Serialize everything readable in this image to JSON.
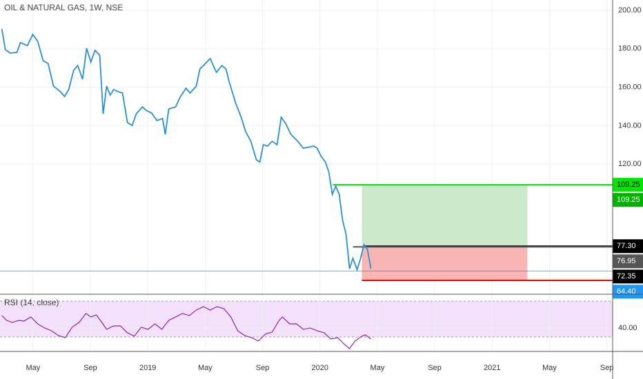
{
  "chart_data": [
    {
      "type": "line",
      "title": "OIL & NATURAL GAS, 1W, NSE",
      "color": "#2a8fd6",
      "x": [
        1.83,
        2.07,
        2.4,
        2.88,
        3.13,
        3.61,
        3.99,
        4.33,
        4.71,
        5.05,
        5.43,
        5.91,
        6.2,
        6.49,
        6.83,
        7.12,
        7.45,
        7.74,
        8.03,
        8.32,
        8.65,
        8.89,
        9.13,
        9.38,
        9.62,
        9.95,
        10.24,
        10.58,
        10.91,
        11.2,
        11.63,
        11.88,
        12.26,
        12.64,
        13.03,
        13.22,
        13.46,
        13.94,
        14.28,
        14.66,
        14.95,
        15.38,
        15.63,
        15.87,
        16.35,
        16.78,
        17.16,
        17.45,
        17.69,
        18.13,
        18.51,
        18.8,
        19.18,
        19.57,
        19.81,
        20.05,
        20.34,
        20.67,
        21.01,
        21.3,
        21.63,
        21.97,
        22.45,
        22.84,
        23.32,
        23.56,
        23.8,
        24.09,
        24.38,
        24.62,
        24.86,
        25.1,
        25.34,
        25.58,
        25.82,
        26.06,
        26.3,
        26.59,
        26.83,
        27.07,
        27.31,
        27.55
      ],
      "values": [
        190.3,
        179.6,
        177.8,
        178.2,
        183.2,
        181.7,
        187.5,
        183.9,
        173.8,
        172.4,
        160.6,
        157.7,
        155.2,
        158.8,
        168.8,
        171.3,
        164.2,
        180.3,
        173.1,
        179.2,
        176.7,
        146.2,
        160.6,
        155.9,
        158.8,
        157.7,
        157.0,
        141.6,
        140.1,
        146.2,
        149.8,
        148.0,
        146.6,
        142.7,
        143.7,
        135.5,
        148.7,
        149.8,
        155.2,
        159.5,
        157.0,
        160.6,
        169.5,
        171.3,
        174.9,
        167.7,
        171.3,
        169.5,
        162.4,
        151.6,
        144.4,
        137.3,
        131.9,
        122.2,
        121.1,
        130.1,
        129.4,
        131.9,
        130.1,
        144.4,
        140.9,
        135.5,
        131.9,
        128.3,
        129.0,
        129.4,
        128.3,
        124.0,
        121.1,
        115.8,
        104.3,
        108.6,
        104.3,
        90.7,
        83.5,
        65.6,
        71.0,
        65.0,
        71.0,
        78.1,
        75.6,
        65.6
      ],
      "xlim": [
        1.7,
        44.4
      ],
      "ylim": [
        52.3,
        205.4
      ],
      "yticks": [
        {
          "value": 120,
          "label": "120.00"
        },
        {
          "value": 140,
          "label": "140.00"
        },
        {
          "value": 160,
          "label": "160.00"
        },
        {
          "value": 180,
          "label": "180.00"
        },
        {
          "value": 200,
          "label": "200.00"
        }
      ],
      "grid": true,
      "position": {
        "entry": 77.3,
        "target": 109.25,
        "stop": 59.5,
        "x_start": 26.92,
        "x_end": 38.46,
        "target_color": "#cbe9cb",
        "stop_color": "#f9b4b4"
      },
      "price_labels": [
        {
          "value": 109.25,
          "label": "109.25",
          "color": "#00e600",
          "text_color": "#000000",
          "from": 24.9
        },
        {
          "value": 109.25,
          "label": "109.25",
          "color": "#00b300",
          "text_color": "#ffffff"
        },
        {
          "value": 77.3,
          "label": "77.30",
          "color": "#000000",
          "text_color": "#ffffff",
          "from": 27.07
        },
        {
          "value": 76.95,
          "label": "76.95",
          "color": "#555555",
          "text_color": "#ffffff",
          "from": 26.3
        },
        {
          "value": 72.35,
          "label": "72.35",
          "color": "#000000",
          "text_color": "#ffffff"
        },
        {
          "value": 64.4,
          "label": "64.40",
          "color": "#2196f3",
          "text_color": "#ffffff",
          "from": 1.7
        }
      ]
    },
    {
      "type": "line",
      "title": "RSI (14, close)",
      "color": "#8e24aa",
      "x": [
        1.83,
        2.16,
        2.55,
        3.03,
        3.37,
        3.85,
        4.33,
        4.81,
        5.29,
        5.77,
        6.25,
        6.73,
        7.21,
        7.69,
        8.03,
        8.41,
        8.8,
        9.13,
        9.62,
        10.1,
        10.58,
        11.06,
        11.54,
        12.02,
        12.5,
        12.98,
        13.46,
        13.94,
        14.42,
        14.9,
        15.38,
        15.87,
        16.35,
        16.83,
        17.31,
        17.79,
        18.27,
        18.75,
        19.23,
        19.71,
        20.19,
        20.67,
        21.15,
        21.39,
        21.88,
        22.36,
        22.84,
        23.32,
        23.8,
        24.28,
        24.76,
        25.24,
        25.72,
        26.06,
        26.44,
        26.92,
        27.16,
        27.55
      ],
      "values": [
        53.8,
        48.5,
        46.2,
        48.5,
        47.7,
        52.3,
        44.6,
        40,
        36.9,
        31.5,
        29.2,
        40.8,
        46.2,
        56.2,
        52.3,
        54.6,
        46.2,
        38.5,
        42.3,
        42.3,
        34.6,
        30.8,
        40.8,
        38.5,
        44.6,
        38.5,
        48.5,
        52.3,
        56.2,
        53.8,
        60,
        63.8,
        60,
        63.8,
        61.5,
        52.3,
        36.9,
        31.5,
        29.2,
        25.4,
        33.1,
        35.4,
        48.5,
        52.3,
        44.6,
        44.6,
        38.5,
        40,
        36.9,
        34.6,
        27.7,
        29.2,
        21.5,
        16.9,
        25.4,
        30.8,
        32.3,
        27.7
      ],
      "xlim": [
        1.7,
        44.4
      ],
      "ylim": [
        13.8,
        76.9
      ],
      "yticks": [
        {
          "value": 40,
          "label": "40.00"
        }
      ],
      "bands": [
        30,
        70
      ],
      "band_color": "#f3e0fb",
      "grid": true,
      "xticks": [
        {
          "value": 4,
          "label": "May"
        },
        {
          "value": 8,
          "label": "Sep"
        },
        {
          "value": 12,
          "label": "2019"
        },
        {
          "value": 16,
          "label": "May"
        },
        {
          "value": 20,
          "label": "Sep"
        },
        {
          "value": 24,
          "label": "2020"
        },
        {
          "value": 28,
          "label": "May"
        },
        {
          "value": 32,
          "label": "Sep"
        },
        {
          "value": 36,
          "label": "2021"
        },
        {
          "value": 40,
          "label": "May"
        },
        {
          "value": 44,
          "label": "Sep"
        }
      ]
    }
  ]
}
